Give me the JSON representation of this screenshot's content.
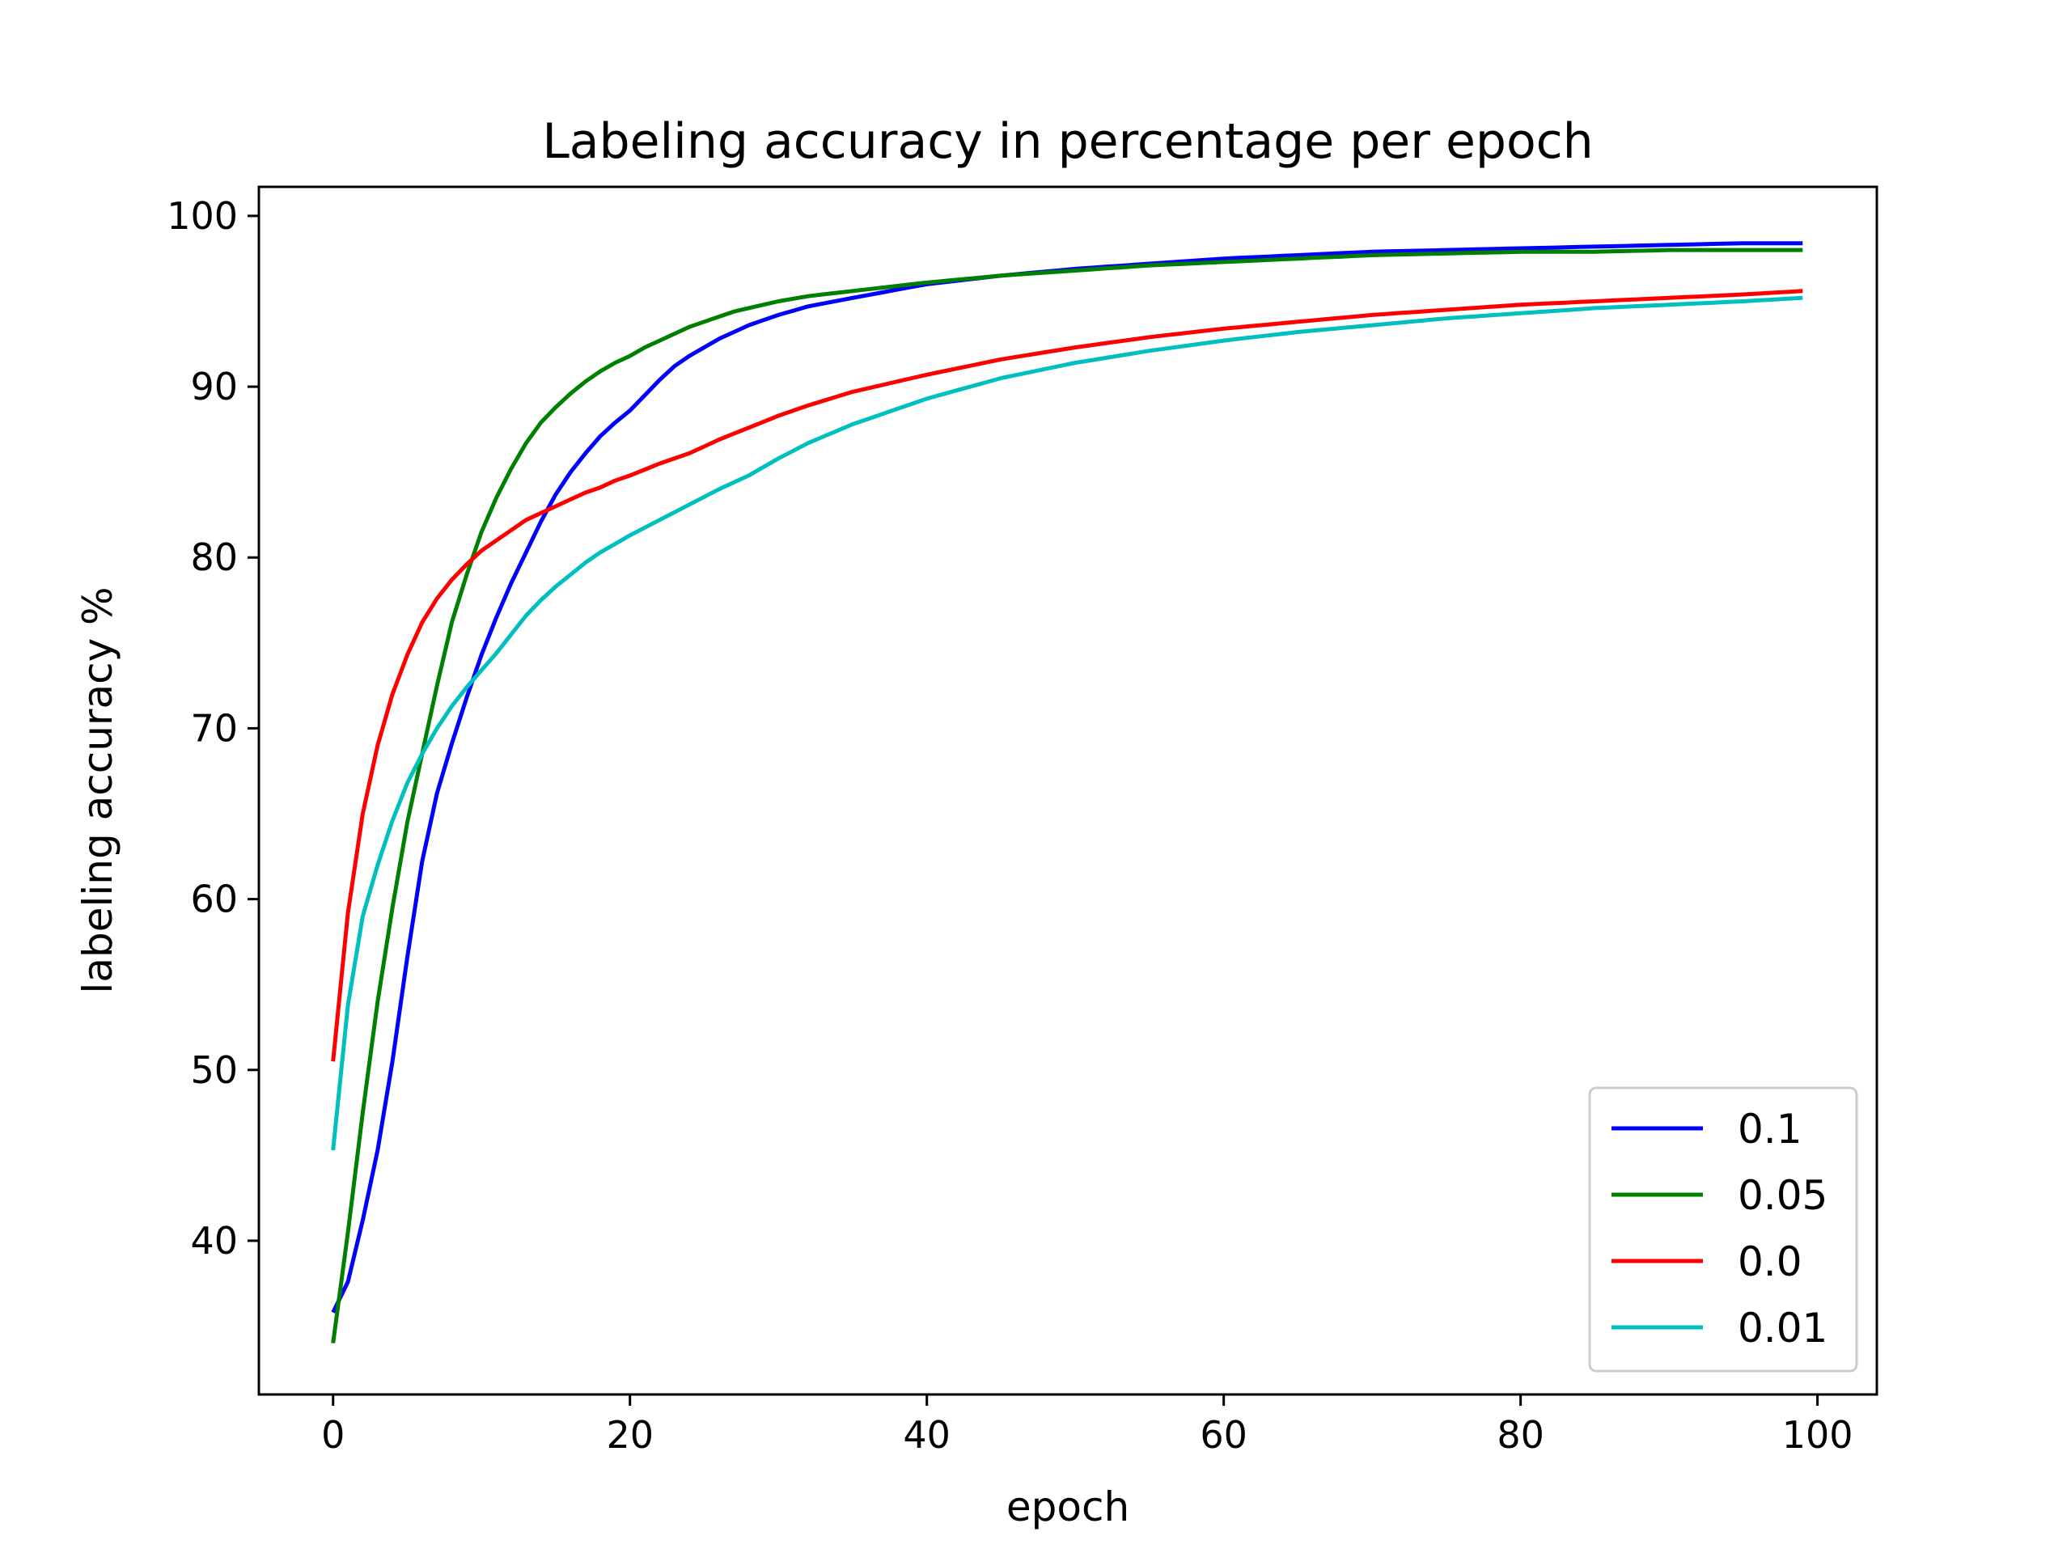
{
  "chart_data": {
    "type": "line",
    "title": "Labeling accuracy in percentage per epoch",
    "xlabel": "epoch",
    "ylabel": "labeling accuracy %",
    "xlim": [
      -5,
      104
    ],
    "ylim": [
      31,
      101.7
    ],
    "xticks": [
      0,
      20,
      40,
      60,
      80,
      100
    ],
    "yticks": [
      40,
      50,
      60,
      70,
      80,
      90,
      100
    ],
    "grid": false,
    "legend_position": "bottom-right",
    "series": [
      {
        "name": "0.1",
        "color": "#0000ff",
        "anchors": [
          [
            0,
            35.8
          ],
          [
            1,
            37.6
          ],
          [
            2,
            41.2
          ],
          [
            3,
            45.3
          ],
          [
            4,
            50.5
          ],
          [
            5,
            56.6
          ],
          [
            6,
            62.2
          ],
          [
            7,
            66.2
          ],
          [
            8,
            69.1
          ],
          [
            9,
            71.8
          ],
          [
            10,
            74.3
          ],
          [
            11,
            76.5
          ],
          [
            12,
            78.5
          ],
          [
            13,
            80.3
          ],
          [
            14,
            82.1
          ],
          [
            15,
            83.7
          ],
          [
            16,
            85.0
          ],
          [
            17,
            86.1
          ],
          [
            18,
            87.1
          ],
          [
            19,
            87.9
          ],
          [
            20,
            88.6
          ],
          [
            21,
            89.5
          ],
          [
            22,
            90.4
          ],
          [
            23,
            91.2
          ],
          [
            24,
            91.8
          ],
          [
            25,
            92.3
          ],
          [
            26,
            92.8
          ],
          [
            27,
            93.2
          ],
          [
            28,
            93.6
          ],
          [
            29,
            93.9
          ],
          [
            30,
            94.2
          ],
          [
            32,
            94.7
          ],
          [
            35,
            95.2
          ],
          [
            40,
            96.0
          ],
          [
            45,
            96.5
          ],
          [
            50,
            96.9
          ],
          [
            55,
            97.2
          ],
          [
            60,
            97.5
          ],
          [
            65,
            97.7
          ],
          [
            70,
            97.9
          ],
          [
            75,
            98.0
          ],
          [
            80,
            98.1
          ],
          [
            85,
            98.2
          ],
          [
            90,
            98.3
          ],
          [
            95,
            98.4
          ],
          [
            99,
            98.4
          ]
        ]
      },
      {
        "name": "0.05",
        "color": "#008000",
        "anchors": [
          [
            0,
            34.0
          ],
          [
            1,
            40.5
          ],
          [
            2,
            47.5
          ],
          [
            3,
            54.0
          ],
          [
            4,
            59.5
          ],
          [
            5,
            64.5
          ],
          [
            6,
            68.5
          ],
          [
            7,
            72.5
          ],
          [
            8,
            76.2
          ],
          [
            9,
            79.0
          ],
          [
            10,
            81.5
          ],
          [
            11,
            83.5
          ],
          [
            12,
            85.2
          ],
          [
            13,
            86.7
          ],
          [
            14,
            87.9
          ],
          [
            15,
            88.8
          ],
          [
            16,
            89.6
          ],
          [
            17,
            90.3
          ],
          [
            18,
            90.9
          ],
          [
            19,
            91.4
          ],
          [
            20,
            91.8
          ],
          [
            21,
            92.3
          ],
          [
            22,
            92.7
          ],
          [
            23,
            93.1
          ],
          [
            24,
            93.5
          ],
          [
            25,
            93.8
          ],
          [
            26,
            94.1
          ],
          [
            27,
            94.4
          ],
          [
            28,
            94.6
          ],
          [
            30,
            95.0
          ],
          [
            32,
            95.3
          ],
          [
            35,
            95.6
          ],
          [
            40,
            96.1
          ],
          [
            45,
            96.5
          ],
          [
            50,
            96.8
          ],
          [
            55,
            97.1
          ],
          [
            60,
            97.3
          ],
          [
            65,
            97.5
          ],
          [
            70,
            97.7
          ],
          [
            75,
            97.8
          ],
          [
            80,
            97.9
          ],
          [
            85,
            97.9
          ],
          [
            90,
            98.0
          ],
          [
            95,
            98.0
          ],
          [
            99,
            98.0
          ]
        ]
      },
      {
        "name": "0.0",
        "color": "#ff0000",
        "anchors": [
          [
            0,
            50.5
          ],
          [
            1,
            59.2
          ],
          [
            2,
            65.0
          ],
          [
            3,
            69.0
          ],
          [
            4,
            72.0
          ],
          [
            5,
            74.3
          ],
          [
            6,
            76.2
          ],
          [
            7,
            77.6
          ],
          [
            8,
            78.7
          ],
          [
            9,
            79.6
          ],
          [
            10,
            80.4
          ],
          [
            11,
            81.0
          ],
          [
            12,
            81.6
          ],
          [
            13,
            82.2
          ],
          [
            14,
            82.6
          ],
          [
            15,
            83.0
          ],
          [
            16,
            83.4
          ],
          [
            17,
            83.8
          ],
          [
            18,
            84.1
          ],
          [
            19,
            84.5
          ],
          [
            20,
            84.8
          ],
          [
            22,
            85.5
          ],
          [
            24,
            86.1
          ],
          [
            26,
            86.9
          ],
          [
            28,
            87.6
          ],
          [
            30,
            88.3
          ],
          [
            32,
            88.9
          ],
          [
            35,
            89.7
          ],
          [
            40,
            90.7
          ],
          [
            45,
            91.6
          ],
          [
            50,
            92.3
          ],
          [
            55,
            92.9
          ],
          [
            60,
            93.4
          ],
          [
            65,
            93.8
          ],
          [
            70,
            94.2
          ],
          [
            75,
            94.5
          ],
          [
            80,
            94.8
          ],
          [
            85,
            95.0
          ],
          [
            90,
            95.2
          ],
          [
            95,
            95.4
          ],
          [
            99,
            95.6
          ]
        ]
      },
      {
        "name": "0.01",
        "color": "#00bfbf",
        "anchors": [
          [
            0,
            45.3
          ],
          [
            1,
            53.8
          ],
          [
            2,
            59.0
          ],
          [
            3,
            62.0
          ],
          [
            4,
            64.6
          ],
          [
            5,
            66.8
          ],
          [
            6,
            68.5
          ],
          [
            7,
            70.0
          ],
          [
            8,
            71.3
          ],
          [
            9,
            72.4
          ],
          [
            10,
            73.4
          ],
          [
            11,
            74.4
          ],
          [
            12,
            75.5
          ],
          [
            13,
            76.6
          ],
          [
            14,
            77.5
          ],
          [
            15,
            78.3
          ],
          [
            16,
            79.0
          ],
          [
            17,
            79.7
          ],
          [
            18,
            80.3
          ],
          [
            19,
            80.8
          ],
          [
            20,
            81.3
          ],
          [
            22,
            82.2
          ],
          [
            24,
            83.1
          ],
          [
            26,
            84.0
          ],
          [
            28,
            84.8
          ],
          [
            30,
            85.8
          ],
          [
            32,
            86.7
          ],
          [
            35,
            87.8
          ],
          [
            40,
            89.3
          ],
          [
            45,
            90.5
          ],
          [
            50,
            91.4
          ],
          [
            55,
            92.1
          ],
          [
            60,
            92.7
          ],
          [
            65,
            93.2
          ],
          [
            70,
            93.6
          ],
          [
            75,
            94.0
          ],
          [
            80,
            94.3
          ],
          [
            85,
            94.6
          ],
          [
            90,
            94.8
          ],
          [
            95,
            95.0
          ],
          [
            99,
            95.2
          ]
        ]
      }
    ]
  }
}
